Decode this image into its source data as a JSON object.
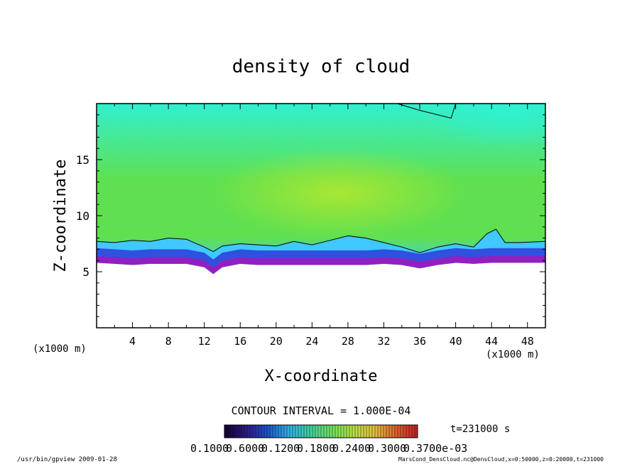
{
  "chart_data": {
    "type": "heatmap",
    "title": "density of cloud",
    "xlabel": "X-coordinate",
    "ylabel": "Z-coordinate",
    "x_unit_left": "(x1000 m)",
    "x_unit_right": "(x1000 m)",
    "xlim": [
      0,
      50
    ],
    "ylim": [
      0,
      20
    ],
    "x_ticks": [
      "4",
      "8",
      "12",
      "16",
      "20",
      "24",
      "28",
      "32",
      "36",
      "40",
      "44",
      "48"
    ],
    "x_tick_values": [
      4,
      8,
      12,
      16,
      20,
      24,
      28,
      32,
      36,
      40,
      44,
      48
    ],
    "y_ticks": [
      "5",
      "10",
      "15"
    ],
    "y_tick_values": [
      5,
      10,
      15
    ],
    "cloud_base_z": [
      [
        0,
        5.8
      ],
      [
        2,
        5.7
      ],
      [
        4,
        5.6
      ],
      [
        6,
        5.7
      ],
      [
        8,
        5.7
      ],
      [
        10,
        5.7
      ],
      [
        12,
        5.4
      ],
      [
        13,
        4.8
      ],
      [
        14,
        5.4
      ],
      [
        16,
        5.7
      ],
      [
        18,
        5.6
      ],
      [
        20,
        5.6
      ],
      [
        24,
        5.6
      ],
      [
        28,
        5.6
      ],
      [
        30,
        5.6
      ],
      [
        32,
        5.7
      ],
      [
        34,
        5.6
      ],
      [
        36,
        5.3
      ],
      [
        38,
        5.6
      ],
      [
        40,
        5.8
      ],
      [
        42,
        5.7
      ],
      [
        44,
        5.8
      ],
      [
        46,
        5.8
      ],
      [
        48,
        5.8
      ],
      [
        50,
        5.8
      ]
    ],
    "contour_level_z": [
      [
        0,
        7.7
      ],
      [
        2,
        7.6
      ],
      [
        4,
        7.8
      ],
      [
        6,
        7.7
      ],
      [
        8,
        8.0
      ],
      [
        10,
        7.9
      ],
      [
        12,
        7.2
      ],
      [
        13,
        6.8
      ],
      [
        14,
        7.3
      ],
      [
        16,
        7.5
      ],
      [
        18,
        7.4
      ],
      [
        20,
        7.3
      ],
      [
        22,
        7.7
      ],
      [
        24,
        7.4
      ],
      [
        26,
        7.8
      ],
      [
        28,
        8.2
      ],
      [
        30,
        8.0
      ],
      [
        32,
        7.6
      ],
      [
        34,
        7.2
      ],
      [
        36,
        6.7
      ],
      [
        38,
        7.2
      ],
      [
        40,
        7.5
      ],
      [
        42,
        7.2
      ],
      [
        43.5,
        8.4
      ],
      [
        44.5,
        8.8
      ],
      [
        45.5,
        7.6
      ],
      [
        47,
        7.6
      ],
      [
        50,
        7.7
      ]
    ],
    "contour_interval": "CONTOUR INTERVAL = 1.000E-04",
    "time_label": "t=231000 s",
    "colorbar_labels": [
      "0.1000",
      "0.6000",
      "0.1200",
      "0.1800",
      "0.2400",
      "0.3000",
      "0.3700e-03"
    ],
    "colorbar_colors": [
      "#1a0033",
      "#2a1a80",
      "#2050d0",
      "#30b0e0",
      "#40d0a0",
      "#70e060",
      "#b8e040",
      "#e0c040",
      "#e06030",
      "#c02020"
    ],
    "field_colors": {
      "upper": "#30f0d0",
      "main": "#60e050",
      "core": "#b0e830",
      "edge": "#40c8ff",
      "base": "#3050e0",
      "bottom": "#9020c0"
    }
  },
  "footer": {
    "left": "/usr/bin/gpview  2009-01-28",
    "right": "MarsCond_DensCloud.nc@DensCloud,x=0:50000,z=0:20000,t=231000"
  }
}
